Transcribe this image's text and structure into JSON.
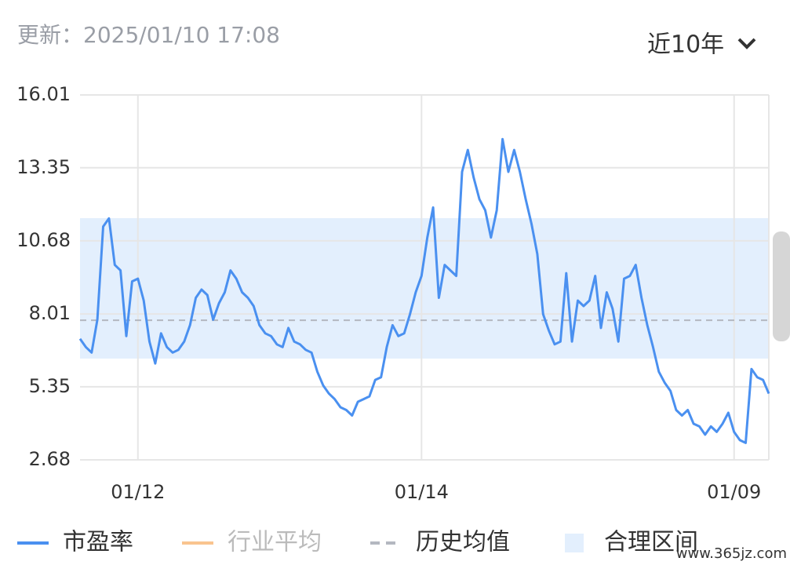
{
  "header": {
    "updated": "更新：2025/01/10 17:08",
    "range": "近10年"
  },
  "chart_data": {
    "type": "line",
    "categories": [
      null,
      null,
      null,
      null,
      null,
      null,
      null,
      null,
      null,
      null,
      "01/12",
      null,
      null,
      null,
      null,
      null,
      null,
      null,
      null,
      null,
      null,
      null,
      null,
      null,
      null,
      null,
      null,
      null,
      null,
      null,
      null,
      null,
      null,
      null,
      null,
      null,
      null,
      null,
      null,
      null,
      null,
      null,
      null,
      null,
      null,
      null,
      null,
      null,
      null,
      null,
      null,
      null,
      null,
      null,
      null,
      null,
      null,
      null,
      null,
      "01/14",
      null,
      null,
      null,
      null,
      null,
      null,
      null,
      null,
      null,
      null,
      null,
      null,
      null,
      null,
      null,
      null,
      null,
      null,
      null,
      null,
      null,
      null,
      null,
      null,
      null,
      null,
      null,
      null,
      null,
      null,
      null,
      null,
      null,
      null,
      null,
      null,
      null,
      null,
      null,
      null,
      null,
      null,
      null,
      null,
      null,
      null,
      null,
      null,
      null,
      null,
      null,
      null,
      null,
      "01/09",
      null,
      null,
      null,
      null,
      null,
      null
    ],
    "series": [
      {
        "name": "市盈率",
        "color": "#4a90f0",
        "values": [
          7.1,
          6.8,
          6.6,
          7.8,
          11.2,
          11.5,
          9.8,
          9.6,
          7.2,
          9.2,
          9.3,
          8.5,
          7.0,
          6.2,
          7.3,
          6.8,
          6.6,
          6.7,
          7.0,
          7.6,
          8.6,
          8.9,
          8.7,
          7.8,
          8.4,
          8.8,
          9.6,
          9.3,
          8.8,
          8.6,
          8.3,
          7.6,
          7.3,
          7.2,
          6.9,
          6.8,
          7.5,
          7.0,
          6.9,
          6.7,
          6.6,
          5.9,
          5.4,
          5.1,
          4.9,
          4.6,
          4.5,
          4.3,
          4.8,
          4.9,
          5.0,
          5.6,
          5.7,
          6.8,
          7.6,
          7.2,
          7.3,
          8.0,
          8.8,
          9.4,
          10.8,
          11.9,
          8.6,
          9.8,
          9.6,
          9.4,
          13.2,
          14.0,
          13.0,
          12.2,
          11.8,
          10.8,
          11.8,
          14.4,
          13.2,
          14.0,
          13.2,
          12.2,
          11.3,
          10.2,
          8.0,
          7.4,
          6.9,
          7.0,
          9.5,
          7.0,
          8.5,
          8.3,
          8.5,
          9.4,
          7.5,
          8.8,
          8.2,
          7.0,
          9.3,
          9.4,
          9.8,
          8.6,
          7.6,
          6.8,
          5.9,
          5.5,
          5.2,
          4.5,
          4.3,
          4.5,
          4.0,
          3.9,
          3.6,
          3.9,
          3.7,
          4.0,
          4.4,
          3.7,
          3.4,
          3.3,
          6.0,
          5.7,
          5.6,
          5.1
        ]
      }
    ],
    "inactive_series": [
      {
        "name": "行业平均",
        "color": "#f9c48f"
      }
    ],
    "reference_lines": [
      {
        "name": "历史均值",
        "value": 7.78,
        "color": "#b4b8c0"
      }
    ],
    "bands": [
      {
        "name": "合理区间",
        "range": [
          6.38,
          11.51
        ],
        "color": "#e3effd"
      }
    ],
    "ylim": [
      2.68,
      16.01
    ],
    "yticks": [
      2.68,
      5.35,
      8.01,
      10.68,
      13.35,
      16.01
    ],
    "grid": true,
    "watermark": "www.365jz.com"
  }
}
